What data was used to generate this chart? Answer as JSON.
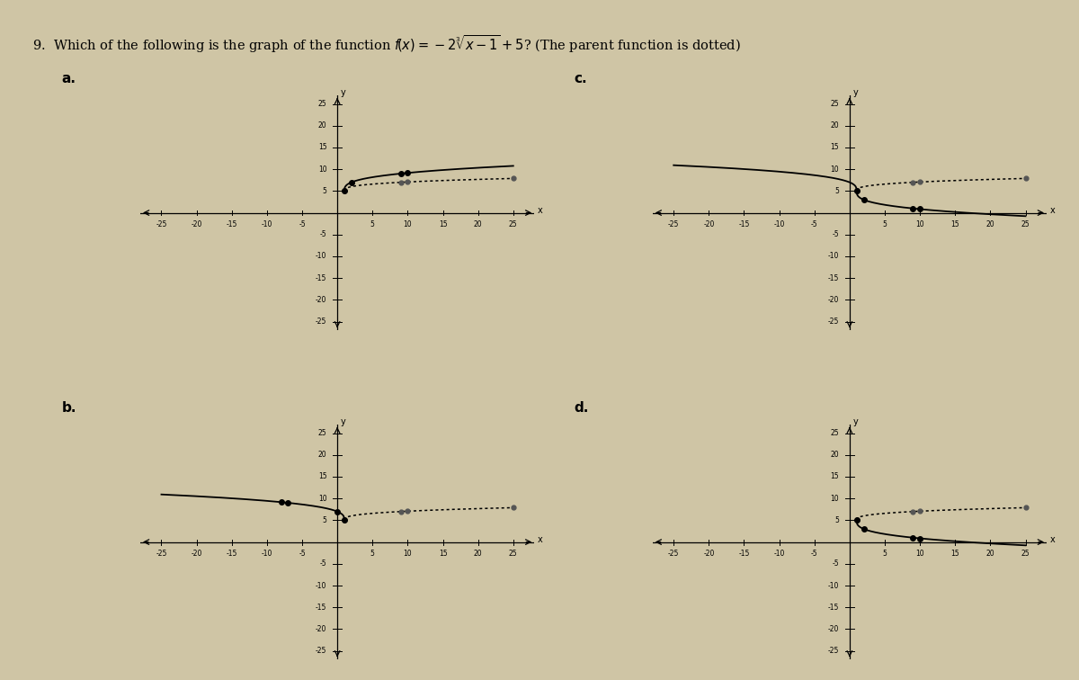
{
  "background_color": "#cfc5a5",
  "title_text": "9.  Which of the following is the graph of the function ",
  "title_func": "f(x) = -2∛(x-1) + 5?",
  "title_suffix": " (The parent function is dotted)",
  "xlim": [
    -28,
    28
  ],
  "ylim": [
    -27,
    27
  ],
  "xticks": [
    -25,
    -20,
    -15,
    -10,
    -5,
    5,
    10,
    15,
    20,
    25
  ],
  "yticks": [
    -25,
    -20,
    -15,
    -10,
    -5,
    5,
    10,
    15,
    20,
    25
  ],
  "subplot_labels": [
    "a.",
    "c.",
    "b.",
    "d."
  ],
  "tick_fontsize": 5.5,
  "label_fontsize": 11
}
